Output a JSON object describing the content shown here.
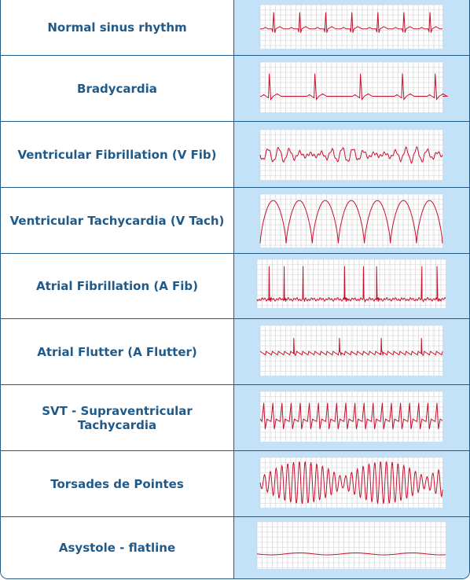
{
  "rhythms": [
    {
      "label": "Normal sinus rhythm",
      "pattern": "normal-sinus"
    },
    {
      "label": "Bradycardia",
      "pattern": "bradycardia"
    },
    {
      "label": "Ventricular Fibrillation (V Fib)",
      "pattern": "ventricular-fibrillation"
    },
    {
      "label": "Ventricular Tachycardia (V Tach)",
      "pattern": "ventricular-tachycardia"
    },
    {
      "label": "Atrial Fibrillation (A Fib)",
      "pattern": "atrial-fibrillation"
    },
    {
      "label": "Atrial Flutter (A Flutter)",
      "pattern": "atrial-flutter"
    },
    {
      "label": "SVT - Supraventricular Tachycardia",
      "pattern": "svt"
    },
    {
      "label": "Torsades de Pointes",
      "pattern": "torsades"
    },
    {
      "label": "Asystole - flatline",
      "pattern": "asystole"
    }
  ],
  "colors": {
    "label_text": "#1f5a8a",
    "border": "#1f5a8a",
    "strip_background": "#c3e1f7",
    "grid_paper": "#ffffff",
    "grid_line": "#cfcfcf",
    "trace": "#c8102e"
  }
}
